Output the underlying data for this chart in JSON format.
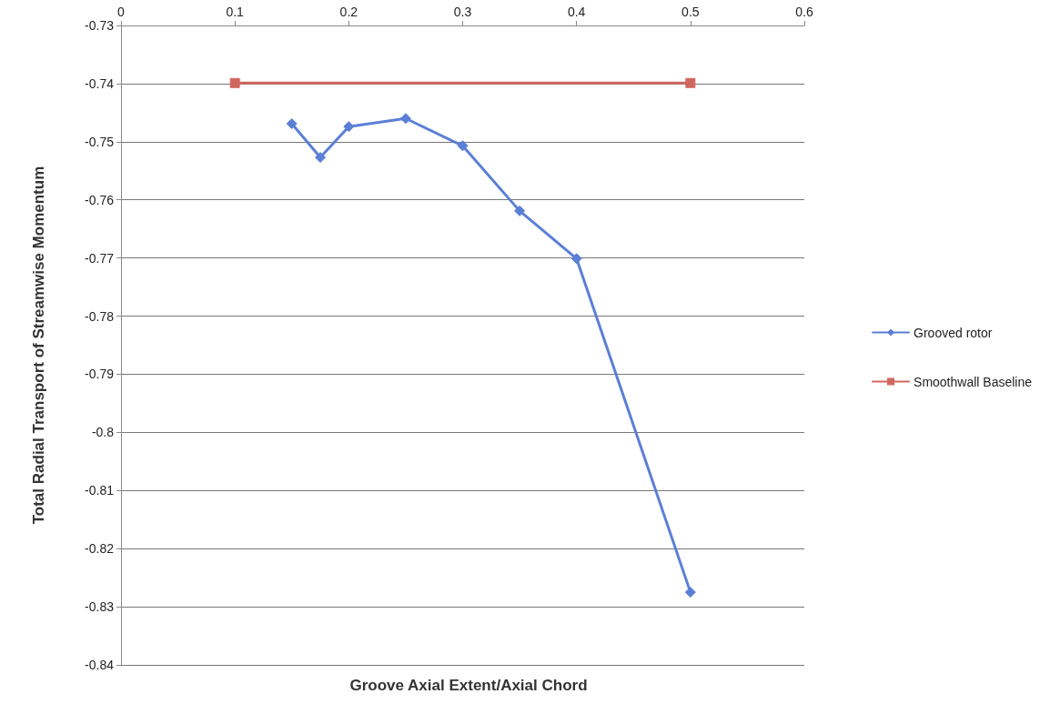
{
  "chart_data": {
    "type": "line",
    "xlabel": "Groove Axial Extent/Axial Chord",
    "ylabel": "Total Radial Transport of Streamwise Momentum",
    "xlim": [
      0,
      0.6
    ],
    "xticks": [
      0,
      0.1,
      0.2,
      0.3,
      0.4,
      0.5,
      0.6
    ],
    "ylim": [
      -0.84,
      -0.73
    ],
    "yticks": [
      -0.84,
      -0.83,
      -0.82,
      -0.81,
      -0.8,
      -0.79,
      -0.78,
      -0.77,
      -0.76,
      -0.75,
      -0.74,
      -0.73
    ],
    "grid": "y",
    "legend": "right",
    "line_style": "solid",
    "series": [
      {
        "name": "Grooved rotor",
        "color": "#5b7fd6",
        "marker": "diamond",
        "x": [
          0.15,
          0.175,
          0.2,
          0.25,
          0.3,
          0.35,
          0.4,
          0.5
        ],
        "values": [
          -0.7469,
          -0.7527,
          -0.7474,
          -0.746,
          -0.7507,
          -0.7619,
          -0.7701,
          -0.8275
        ]
      },
      {
        "name": "Smoothwall Baseline",
        "color": "#d0675f",
        "marker": "square",
        "x": [
          0.1,
          0.5
        ],
        "values": [
          -0.7399,
          -0.7399
        ]
      }
    ]
  }
}
